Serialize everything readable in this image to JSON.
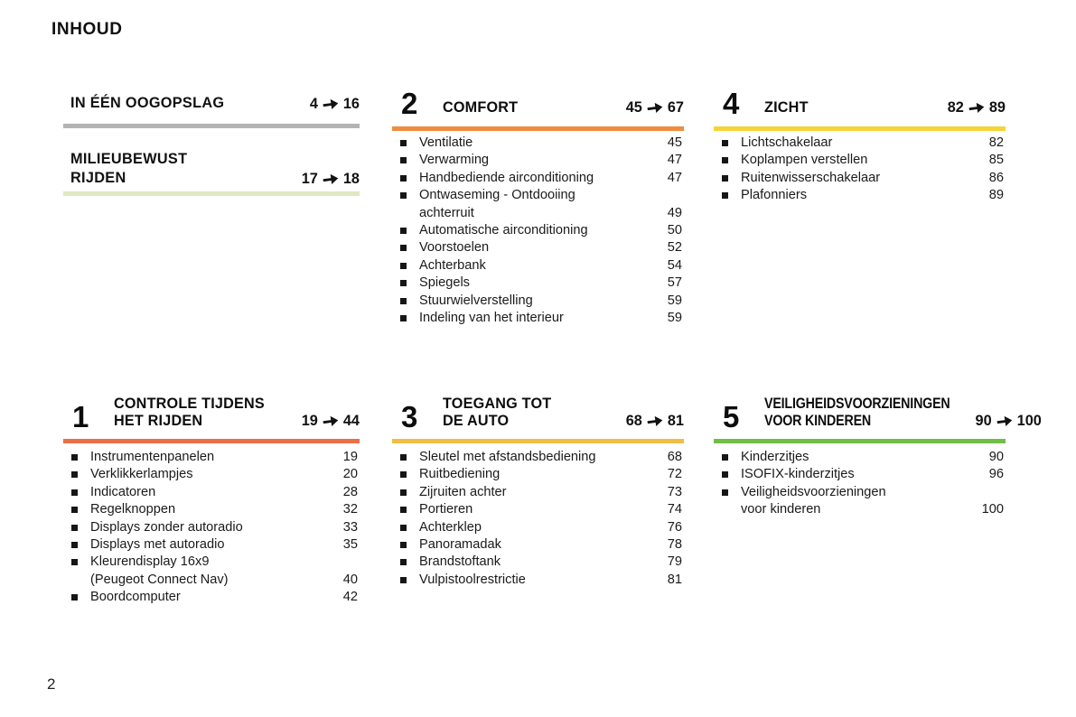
{
  "page": {
    "title": "INHOUD",
    "page_number": "2"
  },
  "quick_sections": [
    {
      "title_lines": [
        "IN ÉÉN OOGOPSLAG"
      ],
      "from": "4",
      "to": "16",
      "bar_color": "#b2b3b4"
    },
    {
      "title_lines": [
        "MILIEUBEWUST",
        "RIJDEN"
      ],
      "from": "17",
      "to": "18",
      "bar_color": "#e0e9c2"
    }
  ],
  "sections": [
    {
      "number": "2",
      "title_lines": [
        "COMFORT"
      ],
      "from": "45",
      "to": "67",
      "bar_color": "#f08c3e",
      "condensed": false,
      "items": [
        {
          "lines": [
            "Ventilatie"
          ],
          "page": "45"
        },
        {
          "lines": [
            "Verwarming"
          ],
          "page": "47"
        },
        {
          "lines": [
            "Handbediende airconditioning"
          ],
          "page": "47"
        },
        {
          "lines": [
            "Ontwaseming - Ontdooiing",
            "achterruit"
          ],
          "page": "49"
        },
        {
          "lines": [
            "Automatische airconditioning"
          ],
          "page": "50"
        },
        {
          "lines": [
            "Voorstoelen"
          ],
          "page": "52"
        },
        {
          "lines": [
            "Achterbank"
          ],
          "page": "54"
        },
        {
          "lines": [
            "Spiegels"
          ],
          "page": "57"
        },
        {
          "lines": [
            "Stuurwielverstelling"
          ],
          "page": "59"
        },
        {
          "lines": [
            "Indeling van het interieur"
          ],
          "page": "59"
        }
      ]
    },
    {
      "number": "4",
      "title_lines": [
        "ZICHT"
      ],
      "from": "82",
      "to": "89",
      "bar_color": "#f5d438",
      "condensed": false,
      "items": [
        {
          "lines": [
            "Lichtschakelaar"
          ],
          "page": "82"
        },
        {
          "lines": [
            "Koplampen verstellen"
          ],
          "page": "85"
        },
        {
          "lines": [
            "Ruitenwisserschakelaar"
          ],
          "page": "86"
        },
        {
          "lines": [
            "Plafonniers"
          ],
          "page": "89"
        }
      ]
    },
    {
      "number": "1",
      "title_lines": [
        "CONTROLE TIJDENS",
        "HET RIJDEN"
      ],
      "from": "19",
      "to": "44",
      "bar_color": "#e96f48",
      "condensed": false,
      "items": [
        {
          "lines": [
            "Instrumentenpanelen"
          ],
          "page": "19"
        },
        {
          "lines": [
            "Verklikkerlampjes"
          ],
          "page": "20"
        },
        {
          "lines": [
            "Indicatoren"
          ],
          "page": "28"
        },
        {
          "lines": [
            "Regelknoppen"
          ],
          "page": "32"
        },
        {
          "lines": [
            "Displays zonder autoradio"
          ],
          "page": "33"
        },
        {
          "lines": [
            "Displays met autoradio"
          ],
          "page": "35"
        },
        {
          "lines": [
            "Kleurendisplay 16x9",
            "(Peugeot Connect Nav)"
          ],
          "page": "40"
        },
        {
          "lines": [
            "Boordcomputer"
          ],
          "page": "42"
        }
      ]
    },
    {
      "number": "3",
      "title_lines": [
        "TOEGANG TOT",
        "DE AUTO"
      ],
      "from": "68",
      "to": "81",
      "bar_color": "#efbe44",
      "condensed": false,
      "items": [
        {
          "lines": [
            "Sleutel met afstandsbediening"
          ],
          "page": "68"
        },
        {
          "lines": [
            "Ruitbediening"
          ],
          "page": "72"
        },
        {
          "lines": [
            "Zijruiten achter"
          ],
          "page": "73"
        },
        {
          "lines": [
            "Portieren"
          ],
          "page": "74"
        },
        {
          "lines": [
            "Achterklep"
          ],
          "page": "76"
        },
        {
          "lines": [
            "Panoramadak"
          ],
          "page": "78"
        },
        {
          "lines": [
            "Brandstoftank"
          ],
          "page": "79"
        },
        {
          "lines": [
            "Vulpistoolrestrictie"
          ],
          "page": "81"
        }
      ]
    },
    {
      "number": "5",
      "title_lines": [
        "VEILIGHEIDSVOORZIENINGEN",
        "VOOR KINDEREN"
      ],
      "from": "90",
      "to": "100",
      "bar_color": "#70be48",
      "condensed": true,
      "items": [
        {
          "lines": [
            "Kinderzitjes"
          ],
          "page": "90"
        },
        {
          "lines": [
            "ISOFIX-kinderzitjes"
          ],
          "page": "96"
        },
        {
          "lines": [
            "Veiligheidsvoorzieningen",
            "voor kinderen"
          ],
          "page": "100"
        }
      ]
    }
  ]
}
